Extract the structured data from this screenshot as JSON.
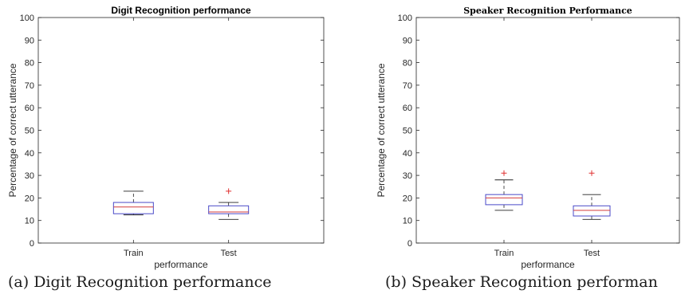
{
  "chart_data": [
    {
      "type": "boxplot",
      "title": "Digit Recognition performance",
      "xlabel": "performance",
      "ylabel": "Percentage of correct utterance",
      "ylim": [
        0,
        100
      ],
      "yticks": [
        0,
        10,
        20,
        30,
        40,
        50,
        60,
        70,
        80,
        90,
        100
      ],
      "categories": [
        "Train",
        "Test"
      ],
      "boxes": [
        {
          "category": "Train",
          "whisker_low": 12.5,
          "q1": 13,
          "median": 16,
          "q3": 18,
          "whisker_high": 23,
          "outliers": []
        },
        {
          "category": "Test",
          "whisker_low": 10.5,
          "q1": 13,
          "median": 13.8,
          "q3": 16.5,
          "whisker_high": 18,
          "outliers": [
            23
          ]
        }
      ],
      "colors": {
        "box": "#4a4ac8",
        "median": "#d43c3c",
        "whisker": "#222222",
        "outlier": "#e03030"
      },
      "caption": "(a) Digit Recognition performance"
    },
    {
      "type": "boxplot",
      "title": "Speaker Recognition Performance",
      "xlabel": "performance",
      "ylabel": "Percentage of correct utterance",
      "ylim": [
        0,
        100
      ],
      "yticks": [
        0,
        10,
        20,
        30,
        40,
        50,
        60,
        70,
        80,
        90,
        100
      ],
      "categories": [
        "Train",
        "Test"
      ],
      "boxes": [
        {
          "category": "Train",
          "whisker_low": 14.5,
          "q1": 17,
          "median": 20,
          "q3": 21.5,
          "whisker_high": 28,
          "outliers": [
            31
          ]
        },
        {
          "category": "Test",
          "whisker_low": 10.5,
          "q1": 12,
          "median": 14.5,
          "q3": 16.5,
          "whisker_high": 21.5,
          "outliers": [
            31
          ]
        }
      ],
      "colors": {
        "box": "#4a4ac8",
        "median": "#d43c3c",
        "whisker": "#222222",
        "outlier": "#e03030"
      },
      "caption": "(b) Speaker Recognition performan"
    }
  ]
}
